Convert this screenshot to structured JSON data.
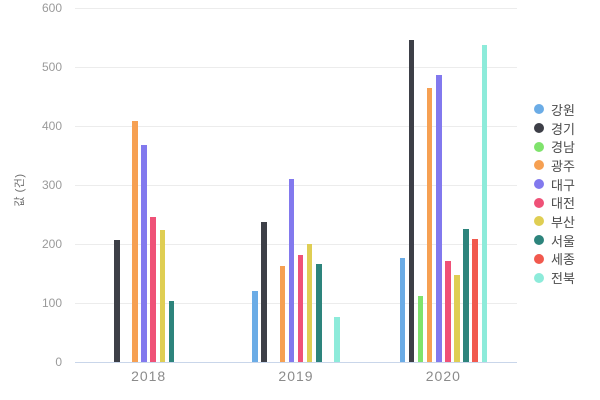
{
  "chart_data": {
    "type": "bar",
    "title": "",
    "xlabel": "",
    "ylabel": "값 (건)",
    "categories": [
      "2018",
      "2019",
      "2020"
    ],
    "ylim": [
      0,
      600
    ],
    "yticks": [
      0,
      100,
      200,
      300,
      400,
      500,
      600
    ],
    "grid": true,
    "legend_position": "right",
    "axis_line_color": "#c9d6ea",
    "grid_color": "#ececec",
    "series": [
      {
        "name": "강원",
        "color": "#6bace6",
        "values": [
          null,
          120,
          177
        ]
      },
      {
        "name": "경기",
        "color": "#3d3f47",
        "values": [
          206,
          238,
          545
        ]
      },
      {
        "name": "경남",
        "color": "#7fe36c",
        "values": [
          null,
          null,
          112
        ]
      },
      {
        "name": "광주",
        "color": "#f6a052",
        "values": [
          409,
          162,
          464
        ]
      },
      {
        "name": "대구",
        "color": "#8279ee",
        "values": [
          367,
          311,
          487
        ]
      },
      {
        "name": "대전",
        "color": "#ef5177",
        "values": [
          246,
          182,
          171
        ]
      },
      {
        "name": "부산",
        "color": "#dfce53",
        "values": [
          224,
          200,
          147
        ]
      },
      {
        "name": "서울",
        "color": "#2d847c",
        "values": [
          103,
          166,
          226
        ]
      },
      {
        "name": "세종",
        "color": "#f1594e",
        "values": [
          null,
          null,
          209
        ]
      },
      {
        "name": "전북",
        "color": "#8debda",
        "values": [
          null,
          76,
          537
        ]
      }
    ]
  }
}
